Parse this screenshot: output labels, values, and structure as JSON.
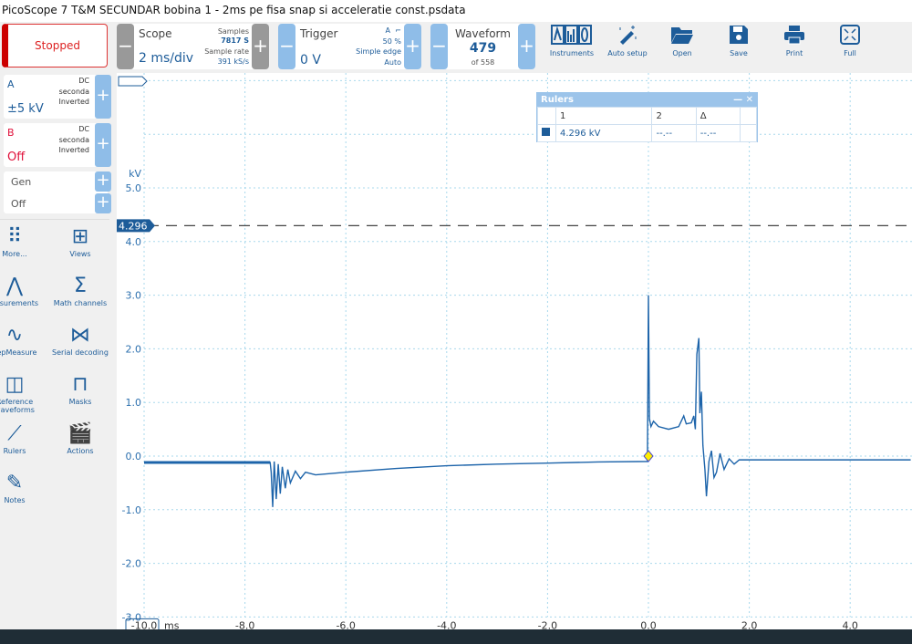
{
  "window": {
    "title": "PicoScope 7 T&M SECUNDAR bobina 1 - 2ms pe fisa snap si acceleratie const.psdata"
  },
  "toolbar": {
    "status": "Stopped",
    "scope": {
      "label": "Scope",
      "timebase": "2 ms/div",
      "samples_label": "Samples",
      "samples": "7817 S",
      "rate_label": "Sample rate",
      "rate": "391 kS/s"
    },
    "trigger": {
      "label": "Trigger",
      "level": "0 V",
      "channel": "A",
      "edge_icon": "falling-edge",
      "percent": "50 %",
      "type": "Simple edge",
      "mode": "Auto"
    },
    "waveform": {
      "label": "Waveform",
      "current": "479",
      "of": "of 558"
    },
    "tools": [
      {
        "label": "Instruments",
        "icon": "instruments"
      },
      {
        "label": "Auto setup",
        "icon": "wand"
      },
      {
        "label": "Open",
        "icon": "folder"
      },
      {
        "label": "Save",
        "icon": "floppy"
      },
      {
        "label": "Print",
        "icon": "printer"
      },
      {
        "label": "Full",
        "icon": "fullscreen"
      }
    ]
  },
  "channels": [
    {
      "name": "A",
      "coupling": "DC",
      "probe": "seconda",
      "invert": "Inverted",
      "range": "±5 kV",
      "color": "#1d5c99"
    },
    {
      "name": "B",
      "coupling": "DC",
      "probe": "seconda",
      "invert": "Inverted",
      "range": "Off",
      "color": "#e0103a"
    },
    {
      "name": "Gen",
      "range": "Off"
    }
  ],
  "sidebar": [
    {
      "label": "More...",
      "icon": "dots-grid"
    },
    {
      "label": "Views",
      "icon": "grid"
    },
    {
      "label": "easurements",
      "icon": "compass"
    },
    {
      "label": "Math channels",
      "icon": "sigma"
    },
    {
      "label": "eepMeasure",
      "icon": "sine-wave"
    },
    {
      "label": "Serial decoding",
      "icon": "serial"
    },
    {
      "label": "Reference waveforms",
      "icon": "reference"
    },
    {
      "label": "Masks",
      "icon": "mask"
    },
    {
      "label": "Rulers",
      "icon": "ruler"
    },
    {
      "label": "Actions",
      "icon": "clapper"
    },
    {
      "label": "Notes",
      "icon": "note"
    }
  ],
  "rulers": {
    "title": "Rulers",
    "headers": [
      "",
      "1",
      "2",
      "Δ",
      ""
    ],
    "row": [
      "4.296 kV",
      "--.--",
      "--.--"
    ]
  },
  "chart_data": {
    "type": "line",
    "xlabel": "ms",
    "ylabel": "kV",
    "xlim": [
      -10,
      5.2
    ],
    "ylim": [
      -3,
      7
    ],
    "xticks": [
      "-10.0",
      "-8.0",
      "-6.0",
      "-4.0",
      "-2.0",
      "0.0",
      "2.0",
      "4.0"
    ],
    "yticks": [
      "5.0",
      "4.0",
      "3.0",
      "2.0",
      "1.0",
      "0.0",
      "-1.0",
      "-2.0",
      "-3.0"
    ],
    "grid": true,
    "ruler_value": 4.296,
    "ruler_label": "4.296",
    "trigger_point": [
      0,
      0
    ],
    "series": [
      {
        "color": "#1d64aa",
        "points": [
          [
            -10,
            -0.12
          ],
          [
            -7.5,
            -0.12
          ],
          [
            -7.48,
            -0.3
          ],
          [
            -7.45,
            -0.95
          ],
          [
            -7.42,
            -0.1
          ],
          [
            -7.38,
            -0.8
          ],
          [
            -7.34,
            -0.15
          ],
          [
            -7.3,
            -0.7
          ],
          [
            -7.26,
            -0.2
          ],
          [
            -7.2,
            -0.6
          ],
          [
            -7.15,
            -0.25
          ],
          [
            -7.1,
            -0.5
          ],
          [
            -7.0,
            -0.28
          ],
          [
            -6.9,
            -0.42
          ],
          [
            -6.8,
            -0.3
          ],
          [
            -6.6,
            -0.35
          ],
          [
            -6.0,
            -0.3
          ],
          [
            -5,
            -0.23
          ],
          [
            -4,
            -0.18
          ],
          [
            -3,
            -0.15
          ],
          [
            -2,
            -0.13
          ],
          [
            -1,
            -0.11
          ],
          [
            -0.02,
            -0.1
          ],
          [
            0,
            3.0
          ],
          [
            0.02,
            0.7
          ],
          [
            0.05,
            0.55
          ],
          [
            0.1,
            0.65
          ],
          [
            0.2,
            0.55
          ],
          [
            0.4,
            0.5
          ],
          [
            0.6,
            0.55
          ],
          [
            0.7,
            0.75
          ],
          [
            0.75,
            0.6
          ],
          [
            0.85,
            0.62
          ],
          [
            0.9,
            0.75
          ],
          [
            0.93,
            0.5
          ],
          [
            0.96,
            1.9
          ],
          [
            1.0,
            2.2
          ],
          [
            1.02,
            0.8
          ],
          [
            1.05,
            1.2
          ],
          [
            1.08,
            0.2
          ],
          [
            1.12,
            -0.25
          ],
          [
            1.15,
            -0.75
          ],
          [
            1.2,
            -0.1
          ],
          [
            1.25,
            0.1
          ],
          [
            1.3,
            -0.4
          ],
          [
            1.35,
            -0.3
          ],
          [
            1.42,
            0.05
          ],
          [
            1.5,
            -0.25
          ],
          [
            1.6,
            -0.05
          ],
          [
            1.7,
            -0.15
          ],
          [
            1.8,
            -0.07
          ],
          [
            3,
            -0.07
          ],
          [
            5,
            -0.07
          ],
          [
            5.2,
            -0.07
          ]
        ]
      }
    ]
  }
}
